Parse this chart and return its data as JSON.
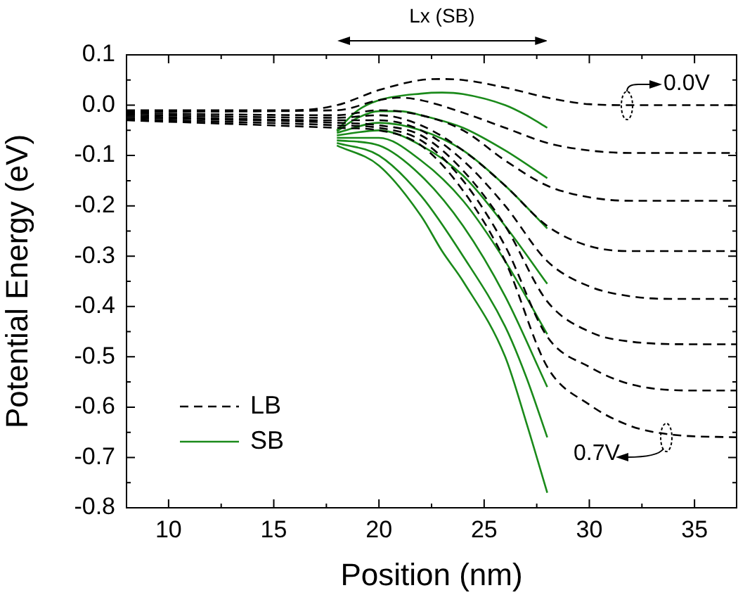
{
  "chart_data": {
    "type": "line",
    "xlabel": "Position (nm)",
    "ylabel": "Potential Energy (eV)",
    "xlim": [
      8,
      37
    ],
    "ylim": [
      -0.8,
      0.1
    ],
    "xticks": [
      10,
      {
        "value": 12.5,
        "label": null
      },
      15,
      {
        "value": 17.5,
        "label": null
      },
      20,
      {
        "value": 22.5,
        "label": null
      },
      25,
      {
        "value": 27.5,
        "label": null
      },
      30,
      {
        "value": 32.5,
        "label": null
      },
      35
    ],
    "yticks": [
      -0.8,
      {
        "value": -0.75,
        "label": null
      },
      -0.7,
      {
        "value": -0.65,
        "label": null
      },
      -0.6,
      {
        "value": -0.55,
        "label": null
      },
      -0.5,
      {
        "value": -0.45,
        "label": null
      },
      -0.4,
      {
        "value": -0.35,
        "label": null
      },
      -0.3,
      {
        "value": -0.25,
        "label": null
      },
      -0.2,
      {
        "value": -0.15,
        "label": null
      },
      -0.1,
      {
        "value": -0.05,
        "label": null
      },
      {
        "value": 0,
        "label": "0.0"
      },
      {
        "value": 0.05,
        "label": null
      },
      0.1
    ],
    "grid": false,
    "legend": "bottom left",
    "annotations": [
      "Lx (SB)",
      "0.0V",
      "0.7V"
    ],
    "series": [
      {
        "name": "LB",
        "color": "#000000",
        "line_style": "dashed",
        "x": [
          8,
          16,
          18,
          20,
          22,
          23,
          24,
          26,
          28,
          30,
          32,
          37
        ],
        "values": [
          -0.01,
          -0.01,
          0.0,
          0.03,
          0.05,
          0.052,
          0.05,
          0.035,
          0.015,
          0.002,
          0,
          0
        ]
      },
      {
        "color": "#000000",
        "line_style": "dashed",
        "x": [
          8,
          18,
          20,
          21,
          22,
          24,
          26,
          28,
          30,
          32,
          37
        ],
        "values": [
          -0.013,
          -0.01,
          0.01,
          0.015,
          0.01,
          -0.015,
          -0.045,
          -0.075,
          -0.09,
          -0.095,
          -0.095
        ]
      },
      {
        "color": "#000000",
        "line_style": "dashed",
        "x": [
          8,
          18,
          20,
          22,
          24,
          26,
          28,
          30,
          32,
          37
        ],
        "values": [
          -0.016,
          -0.02,
          -0.01,
          -0.02,
          -0.05,
          -0.11,
          -0.16,
          -0.183,
          -0.19,
          -0.19
        ]
      },
      {
        "color": "#000000",
        "line_style": "dashed",
        "x": [
          8,
          18,
          20,
          22,
          24,
          26,
          28,
          30,
          32,
          37
        ],
        "values": [
          -0.019,
          -0.025,
          -0.02,
          -0.04,
          -0.09,
          -0.16,
          -0.24,
          -0.28,
          -0.29,
          -0.29
        ]
      },
      {
        "color": "#000000",
        "line_style": "dashed",
        "x": [
          8,
          18,
          20,
          22,
          24,
          26,
          28,
          30,
          32,
          34,
          37
        ],
        "values": [
          -0.022,
          -0.03,
          -0.03,
          -0.05,
          -0.11,
          -0.2,
          -0.31,
          -0.36,
          -0.38,
          -0.385,
          -0.385
        ]
      },
      {
        "color": "#000000",
        "line_style": "dashed",
        "x": [
          8,
          18,
          20,
          22,
          24,
          26,
          28,
          30,
          32,
          35,
          37
        ],
        "values": [
          -0.025,
          -0.035,
          -0.04,
          -0.06,
          -0.13,
          -0.24,
          -0.39,
          -0.45,
          -0.47,
          -0.475,
          -0.475
        ]
      },
      {
        "color": "#000000",
        "line_style": "dashed",
        "x": [
          8,
          18,
          20,
          22,
          24,
          26,
          28,
          30,
          32,
          35,
          37
        ],
        "values": [
          -0.028,
          -0.04,
          -0.045,
          -0.07,
          -0.15,
          -0.28,
          -0.46,
          -0.52,
          -0.555,
          -0.567,
          -0.567
        ]
      },
      {
        "color": "#000000",
        "line_style": "dashed",
        "x": [
          8,
          18,
          20,
          22,
          24,
          26,
          28,
          30,
          32,
          34,
          37
        ],
        "values": [
          -0.03,
          -0.045,
          -0.05,
          -0.08,
          -0.17,
          -0.31,
          -0.52,
          -0.595,
          -0.638,
          -0.655,
          -0.66
        ]
      },
      {
        "name": "SB",
        "color": "#1a8a1a",
        "line_style": "solid",
        "x": [
          18,
          19,
          20,
          22,
          23,
          24,
          26,
          27,
          28
        ],
        "values": [
          -0.05,
          -0.01,
          0.01,
          0.023,
          0.025,
          0.022,
          0.0,
          -0.02,
          -0.045
        ]
      },
      {
        "color": "#1a8a1a",
        "line_style": "solid",
        "x": [
          18,
          19,
          20,
          21,
          22,
          24,
          26,
          28
        ],
        "values": [
          -0.052,
          -0.025,
          -0.012,
          -0.012,
          -0.02,
          -0.045,
          -0.09,
          -0.145
        ]
      },
      {
        "color": "#1a8a1a",
        "line_style": "solid",
        "x": [
          18,
          20,
          22,
          24,
          26,
          28
        ],
        "values": [
          -0.055,
          -0.035,
          -0.05,
          -0.09,
          -0.16,
          -0.245
        ]
      },
      {
        "color": "#1a8a1a",
        "line_style": "solid",
        "x": [
          18,
          20,
          22,
          24,
          26,
          28
        ],
        "values": [
          -0.06,
          -0.05,
          -0.08,
          -0.14,
          -0.24,
          -0.355
        ]
      },
      {
        "color": "#1a8a1a",
        "line_style": "solid",
        "x": [
          18,
          20,
          22,
          24,
          26,
          28
        ],
        "values": [
          -0.065,
          -0.065,
          -0.11,
          -0.19,
          -0.31,
          -0.455
        ]
      },
      {
        "color": "#1a8a1a",
        "line_style": "solid",
        "x": [
          18,
          20,
          22,
          24,
          26,
          28
        ],
        "values": [
          -0.07,
          -0.08,
          -0.14,
          -0.24,
          -0.38,
          -0.56
        ]
      },
      {
        "color": "#1a8a1a",
        "line_style": "solid",
        "x": [
          18,
          20,
          22,
          24,
          26,
          27,
          28
        ],
        "values": [
          -0.075,
          -0.1,
          -0.18,
          -0.3,
          -0.44,
          -0.54,
          -0.66
        ]
      },
      {
        "color": "#1a8a1a",
        "line_style": "solid",
        "x": [
          18,
          20,
          22,
          23,
          24,
          26,
          27,
          28
        ],
        "values": [
          -0.08,
          -0.12,
          -0.22,
          -0.29,
          -0.35,
          -0.5,
          -0.63,
          -0.77
        ]
      }
    ]
  }
}
